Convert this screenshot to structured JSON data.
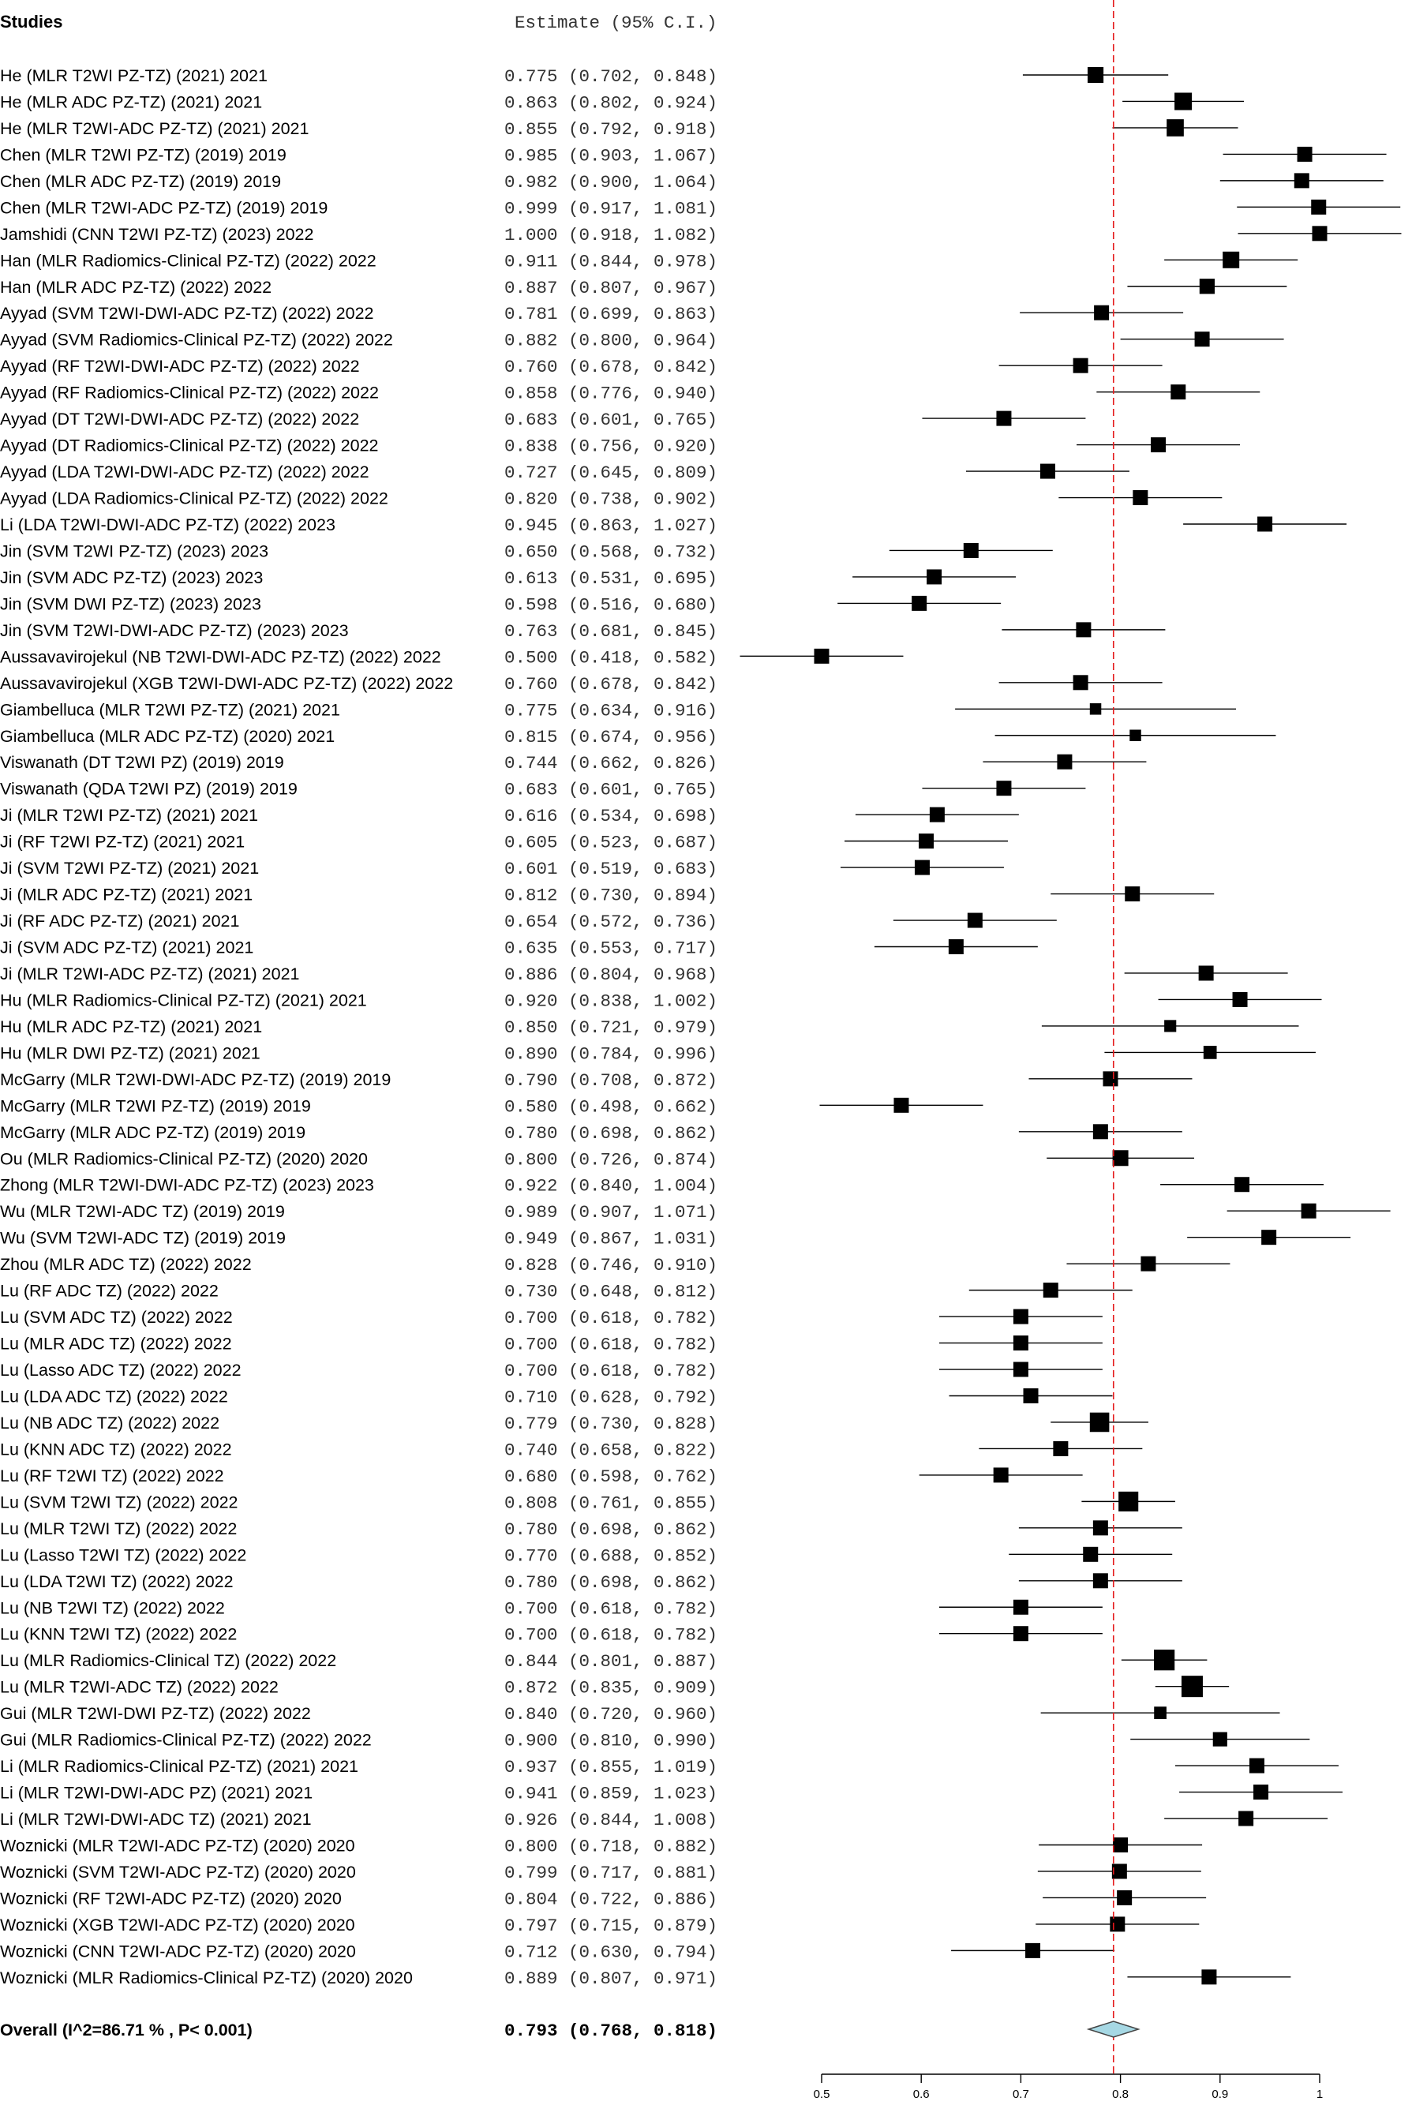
{
  "chart_data": {
    "type": "forest",
    "header": {
      "studies": "Studies",
      "estimate": "Estimate (95% C.I.)"
    },
    "reference_line": {
      "value": 0.793,
      "color": "#e41a1c",
      "style": "dashed"
    },
    "marker_color": "#000000",
    "diamond_color": "#a6d8e4",
    "xlim": [
      0.5,
      1
    ],
    "xticks": [
      0.5,
      0.6,
      0.7,
      0.8,
      0.9,
      1
    ],
    "xtick_labels": [
      "0.5",
      "0.6",
      "0.7",
      "0.8",
      "0.9",
      "1"
    ],
    "studies": [
      {
        "study": "He (MLR T2WI PZ-TZ) (2021) 2021",
        "est": 0.775,
        "lo": 0.702,
        "hi": 0.848
      },
      {
        "study": "He (MLR ADC PZ-TZ) (2021) 2021",
        "est": 0.863,
        "lo": 0.802,
        "hi": 0.924
      },
      {
        "study": "He (MLR T2WI-ADC PZ-TZ) (2021) 2021",
        "est": 0.855,
        "lo": 0.792,
        "hi": 0.918
      },
      {
        "study": "Chen (MLR T2WI PZ-TZ) (2019) 2019",
        "est": 0.985,
        "lo": 0.903,
        "hi": 1.067
      },
      {
        "study": "Chen (MLR ADC PZ-TZ) (2019) 2019",
        "est": 0.982,
        "lo": 0.9,
        "hi": 1.064
      },
      {
        "study": "Chen (MLR T2WI-ADC PZ-TZ) (2019) 2019",
        "est": 0.999,
        "lo": 0.917,
        "hi": 1.081
      },
      {
        "study": "Jamshidi (CNN T2WI PZ-TZ) (2023) 2022",
        "est": 1.0,
        "lo": 0.918,
        "hi": 1.082
      },
      {
        "study": "Han (MLR Radiomics-Clinical PZ-TZ) (2022) 2022",
        "est": 0.911,
        "lo": 0.844,
        "hi": 0.978
      },
      {
        "study": "Han (MLR ADC PZ-TZ) (2022) 2022",
        "est": 0.887,
        "lo": 0.807,
        "hi": 0.967
      },
      {
        "study": "Ayyad (SVM T2WI-DWI-ADC PZ-TZ) (2022) 2022",
        "est": 0.781,
        "lo": 0.699,
        "hi": 0.863
      },
      {
        "study": "Ayyad (SVM Radiomics-Clinical PZ-TZ) (2022) 2022",
        "est": 0.882,
        "lo": 0.8,
        "hi": 0.964
      },
      {
        "study": "Ayyad (RF T2WI-DWI-ADC PZ-TZ) (2022) 2022",
        "est": 0.76,
        "lo": 0.678,
        "hi": 0.842
      },
      {
        "study": "Ayyad (RF Radiomics-Clinical PZ-TZ) (2022) 2022",
        "est": 0.858,
        "lo": 0.776,
        "hi": 0.94
      },
      {
        "study": "Ayyad (DT T2WI-DWI-ADC PZ-TZ) (2022) 2022",
        "est": 0.683,
        "lo": 0.601,
        "hi": 0.765
      },
      {
        "study": "Ayyad (DT Radiomics-Clinical PZ-TZ) (2022) 2022",
        "est": 0.838,
        "lo": 0.756,
        "hi": 0.92
      },
      {
        "study": "Ayyad (LDA T2WI-DWI-ADC PZ-TZ) (2022) 2022",
        "est": 0.727,
        "lo": 0.645,
        "hi": 0.809
      },
      {
        "study": "Ayyad (LDA Radiomics-Clinical PZ-TZ) (2022) 2022",
        "est": 0.82,
        "lo": 0.738,
        "hi": 0.902
      },
      {
        "study": "Li (LDA T2WI-DWI-ADC PZ-TZ) (2022) 2023",
        "est": 0.945,
        "lo": 0.863,
        "hi": 1.027
      },
      {
        "study": "Jin (SVM T2WI PZ-TZ) (2023) 2023",
        "est": 0.65,
        "lo": 0.568,
        "hi": 0.732
      },
      {
        "study": "Jin (SVM ADC PZ-TZ) (2023) 2023",
        "est": 0.613,
        "lo": 0.531,
        "hi": 0.695
      },
      {
        "study": "Jin (SVM DWI PZ-TZ) (2023) 2023",
        "est": 0.598,
        "lo": 0.516,
        "hi": 0.68
      },
      {
        "study": "Jin (SVM T2WI-DWI-ADC PZ-TZ) (2023) 2023",
        "est": 0.763,
        "lo": 0.681,
        "hi": 0.845
      },
      {
        "study": "Aussavavirojekul (NB T2WI-DWI-ADC PZ-TZ) (2022) 2022",
        "est": 0.5,
        "lo": 0.418,
        "hi": 0.582
      },
      {
        "study": "Aussavavirojekul (XGB T2WI-DWI-ADC PZ-TZ) (2022) 2022",
        "est": 0.76,
        "lo": 0.678,
        "hi": 0.842
      },
      {
        "study": "Giambelluca (MLR T2WI PZ-TZ) (2021) 2021",
        "est": 0.775,
        "lo": 0.634,
        "hi": 0.916
      },
      {
        "study": "Giambelluca (MLR ADC PZ-TZ) (2020) 2021",
        "est": 0.815,
        "lo": 0.674,
        "hi": 0.956
      },
      {
        "study": "Viswanath (DT T2WI PZ) (2019) 2019",
        "est": 0.744,
        "lo": 0.662,
        "hi": 0.826
      },
      {
        "study": "Viswanath (QDA T2WI PZ) (2019) 2019",
        "est": 0.683,
        "lo": 0.601,
        "hi": 0.765
      },
      {
        "study": "Ji (MLR T2WI PZ-TZ) (2021) 2021",
        "est": 0.616,
        "lo": 0.534,
        "hi": 0.698
      },
      {
        "study": "Ji (RF T2WI PZ-TZ) (2021) 2021",
        "est": 0.605,
        "lo": 0.523,
        "hi": 0.687
      },
      {
        "study": "Ji (SVM T2WI PZ-TZ) (2021) 2021",
        "est": 0.601,
        "lo": 0.519,
        "hi": 0.683
      },
      {
        "study": "Ji (MLR ADC PZ-TZ) (2021) 2021",
        "est": 0.812,
        "lo": 0.73,
        "hi": 0.894
      },
      {
        "study": "Ji (RF ADC PZ-TZ) (2021) 2021",
        "est": 0.654,
        "lo": 0.572,
        "hi": 0.736
      },
      {
        "study": "Ji (SVM ADC PZ-TZ) (2021) 2021",
        "est": 0.635,
        "lo": 0.553,
        "hi": 0.717
      },
      {
        "study": "Ji (MLR T2WI-ADC PZ-TZ) (2021) 2021",
        "est": 0.886,
        "lo": 0.804,
        "hi": 0.968
      },
      {
        "study": "Hu (MLR Radiomics-Clinical PZ-TZ) (2021) 2021",
        "est": 0.92,
        "lo": 0.838,
        "hi": 1.002
      },
      {
        "study": "Hu (MLR ADC PZ-TZ) (2021) 2021",
        "est": 0.85,
        "lo": 0.721,
        "hi": 0.979
      },
      {
        "study": "Hu (MLR DWI PZ-TZ) (2021) 2021",
        "est": 0.89,
        "lo": 0.784,
        "hi": 0.996
      },
      {
        "study": "McGarry (MLR T2WI-DWI-ADC PZ-TZ) (2019) 2019",
        "est": 0.79,
        "lo": 0.708,
        "hi": 0.872
      },
      {
        "study": "McGarry (MLR T2WI PZ-TZ) (2019) 2019",
        "est": 0.58,
        "lo": 0.498,
        "hi": 0.662
      },
      {
        "study": "McGarry (MLR ADC PZ-TZ) (2019) 2019",
        "est": 0.78,
        "lo": 0.698,
        "hi": 0.862
      },
      {
        "study": "Ou (MLR Radiomics-Clinical PZ-TZ) (2020) 2020",
        "est": 0.8,
        "lo": 0.726,
        "hi": 0.874
      },
      {
        "study": "Zhong (MLR T2WI-DWI-ADC PZ-TZ) (2023) 2023",
        "est": 0.922,
        "lo": 0.84,
        "hi": 1.004
      },
      {
        "study": "Wu (MLR T2WI-ADC TZ) (2019) 2019",
        "est": 0.989,
        "lo": 0.907,
        "hi": 1.071
      },
      {
        "study": "Wu (SVM T2WI-ADC TZ) (2019) 2019",
        "est": 0.949,
        "lo": 0.867,
        "hi": 1.031
      },
      {
        "study": "Zhou (MLR ADC TZ) (2022) 2022",
        "est": 0.828,
        "lo": 0.746,
        "hi": 0.91
      },
      {
        "study": "Lu (RF ADC TZ) (2022) 2022",
        "est": 0.73,
        "lo": 0.648,
        "hi": 0.812
      },
      {
        "study": "Lu (SVM ADC TZ) (2022) 2022",
        "est": 0.7,
        "lo": 0.618,
        "hi": 0.782
      },
      {
        "study": "Lu (MLR ADC TZ) (2022) 2022",
        "est": 0.7,
        "lo": 0.618,
        "hi": 0.782
      },
      {
        "study": "Lu (Lasso ADC TZ) (2022) 2022",
        "est": 0.7,
        "lo": 0.618,
        "hi": 0.782
      },
      {
        "study": "Lu (LDA ADC TZ) (2022) 2022",
        "est": 0.71,
        "lo": 0.628,
        "hi": 0.792
      },
      {
        "study": "Lu (NB ADC TZ) (2022) 2022",
        "est": 0.779,
        "lo": 0.73,
        "hi": 0.828
      },
      {
        "study": "Lu (KNN ADC TZ) (2022) 2022",
        "est": 0.74,
        "lo": 0.658,
        "hi": 0.822
      },
      {
        "study": "Lu (RF T2WI TZ) (2022) 2022",
        "est": 0.68,
        "lo": 0.598,
        "hi": 0.762
      },
      {
        "study": "Lu (SVM T2WI TZ) (2022) 2022",
        "est": 0.808,
        "lo": 0.761,
        "hi": 0.855
      },
      {
        "study": "Lu (MLR T2WI TZ) (2022) 2022",
        "est": 0.78,
        "lo": 0.698,
        "hi": 0.862
      },
      {
        "study": "Lu (Lasso T2WI TZ) (2022) 2022",
        "est": 0.77,
        "lo": 0.688,
        "hi": 0.852
      },
      {
        "study": "Lu (LDA T2WI TZ) (2022) 2022",
        "est": 0.78,
        "lo": 0.698,
        "hi": 0.862
      },
      {
        "study": "Lu (NB T2WI TZ) (2022) 2022",
        "est": 0.7,
        "lo": 0.618,
        "hi": 0.782
      },
      {
        "study": "Lu (KNN T2WI TZ) (2022) 2022",
        "est": 0.7,
        "lo": 0.618,
        "hi": 0.782
      },
      {
        "study": "Lu (MLR Radiomics-Clinical TZ) (2022) 2022",
        "est": 0.844,
        "lo": 0.801,
        "hi": 0.887
      },
      {
        "study": "Lu (MLR T2WI-ADC TZ) (2022) 2022",
        "est": 0.872,
        "lo": 0.835,
        "hi": 0.909
      },
      {
        "study": "Gui (MLR T2WI-DWI PZ-TZ) (2022) 2022",
        "est": 0.84,
        "lo": 0.72,
        "hi": 0.96
      },
      {
        "study": "Gui (MLR Radiomics-Clinical PZ-TZ) (2022) 2022",
        "est": 0.9,
        "lo": 0.81,
        "hi": 0.99
      },
      {
        "study": "Li (MLR Radiomics-Clinical PZ-TZ) (2021) 2021",
        "est": 0.937,
        "lo": 0.855,
        "hi": 1.019
      },
      {
        "study": "Li (MLR T2WI-DWI-ADC PZ) (2021) 2021",
        "est": 0.941,
        "lo": 0.859,
        "hi": 1.023
      },
      {
        "study": "Li (MLR T2WI-DWI-ADC TZ) (2021) 2021",
        "est": 0.926,
        "lo": 0.844,
        "hi": 1.008
      },
      {
        "study": "Woznicki (MLR T2WI-ADC PZ-TZ) (2020) 2020",
        "est": 0.8,
        "lo": 0.718,
        "hi": 0.882
      },
      {
        "study": "Woznicki (SVM T2WI-ADC PZ-TZ) (2020) 2020",
        "est": 0.799,
        "lo": 0.717,
        "hi": 0.881
      },
      {
        "study": "Woznicki (RF T2WI-ADC PZ-TZ) (2020) 2020",
        "est": 0.804,
        "lo": 0.722,
        "hi": 0.886
      },
      {
        "study": "Woznicki (XGB T2WI-ADC PZ-TZ) (2020) 2020",
        "est": 0.797,
        "lo": 0.715,
        "hi": 0.879
      },
      {
        "study": "Woznicki (CNN T2WI-ADC PZ-TZ) (2020) 2020",
        "est": 0.712,
        "lo": 0.63,
        "hi": 0.794
      },
      {
        "study": "Woznicki (MLR Radiomics-Clinical PZ-TZ) (2020) 2020",
        "est": 0.889,
        "lo": 0.807,
        "hi": 0.971
      }
    ],
    "overall": {
      "label": "Overall (I^2=86.71 % , P< 0.001)",
      "est": 0.793,
      "lo": 0.768,
      "hi": 0.818
    }
  }
}
